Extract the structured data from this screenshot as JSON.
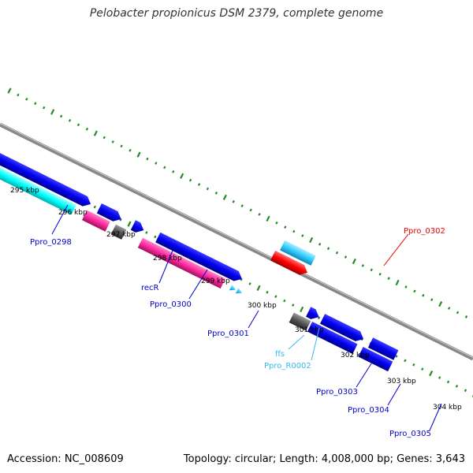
{
  "title": "Pelobacter propionicus DSM 2379, complete genome",
  "accession": "Accession: NC_008609",
  "topology": "Topology: circular; Length: 4,008,000 bp; Genes: 3,643",
  "colors": {
    "protein_gene": "#0000ee",
    "protein_gene_alt": "#00ffff",
    "rna_gene": "#ff2aa0",
    "pseudo_gene": "#555555",
    "highlight_gene": "#ff0000",
    "light_blue_gene": "#33ccff",
    "backbone": "#888888",
    "tick_marks": "#228b22"
  },
  "kbp_labels": [
    "295 kbp",
    "296 kbp",
    "297 kbp",
    "298 kbp",
    "299 kbp",
    "300 kbp",
    "301 kbp",
    "302 kbp",
    "303 kbp",
    "304 kbp"
  ],
  "gene_labels": [
    {
      "text": "Ppro_0298",
      "color": "#0000cc"
    },
    {
      "text": "recR",
      "color": "#0000cc"
    },
    {
      "text": "Ppro_0300",
      "color": "#0000cc"
    },
    {
      "text": "Ppro_0301",
      "color": "#0000cc"
    },
    {
      "text": "ffs",
      "color": "#33bbee"
    },
    {
      "text": "Ppro_R0002",
      "color": "#33bbee"
    },
    {
      "text": "Ppro_0302",
      "color": "#ee0000"
    },
    {
      "text": "Ppro_0303",
      "color": "#0000cc"
    },
    {
      "text": "Ppro_0304",
      "color": "#0000cc"
    },
    {
      "text": "Ppro_0305",
      "color": "#0000cc"
    }
  ]
}
